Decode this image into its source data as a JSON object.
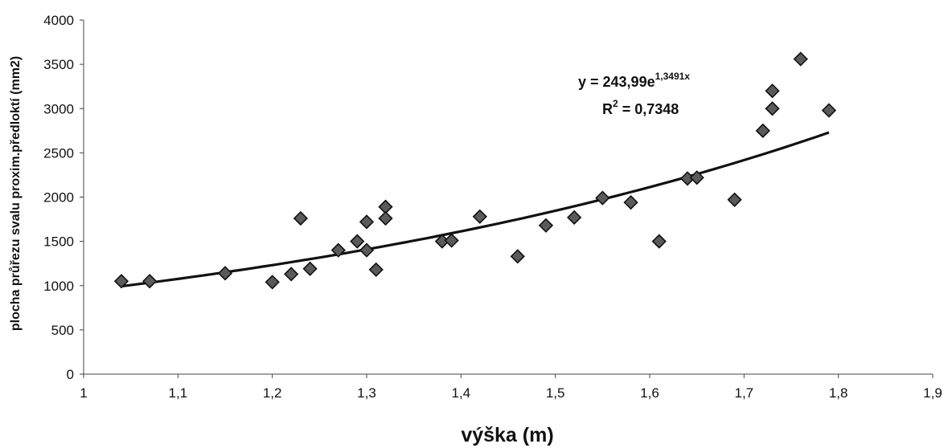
{
  "chart_data": {
    "type": "scatter",
    "xlabel": "výška (m)",
    "ylabel": "plocha průřezu svalu proxim.předloktí (mm2)",
    "xlim": [
      1,
      1.9
    ],
    "ylim": [
      0,
      4000
    ],
    "x_ticks": [
      "1",
      "1,1",
      "1,2",
      "1,3",
      "1,4",
      "1,5",
      "1,6",
      "1,7",
      "1,8",
      "1,9"
    ],
    "y_ticks": [
      "0",
      "500",
      "1000",
      "1500",
      "2000",
      "2500",
      "3000",
      "3500",
      "4000"
    ],
    "grid": false,
    "legend": "none",
    "marker_color": "#5a5a5a",
    "trendline": {
      "type": "exponential",
      "a": 243.99,
      "b": 1.3491,
      "x_range": [
        1.04,
        1.79
      ],
      "equation_prefix": "y = 243,99e",
      "equation_exponent": "1,3491x",
      "r2_prefix": "R",
      "r2_sup": "2",
      "r2_value": " = 0,7348"
    },
    "points": [
      [
        1.04,
        1050
      ],
      [
        1.07,
        1050
      ],
      [
        1.15,
        1140
      ],
      [
        1.2,
        1040
      ],
      [
        1.22,
        1130
      ],
      [
        1.23,
        1760
      ],
      [
        1.24,
        1190
      ],
      [
        1.27,
        1400
      ],
      [
        1.29,
        1500
      ],
      [
        1.3,
        1720
      ],
      [
        1.3,
        1400
      ],
      [
        1.31,
        1180
      ],
      [
        1.32,
        1890
      ],
      [
        1.32,
        1760
      ],
      [
        1.38,
        1500
      ],
      [
        1.39,
        1510
      ],
      [
        1.42,
        1780
      ],
      [
        1.46,
        1330
      ],
      [
        1.49,
        1680
      ],
      [
        1.52,
        1770
      ],
      [
        1.55,
        1990
      ],
      [
        1.58,
        1940
      ],
      [
        1.61,
        1500
      ],
      [
        1.64,
        2210
      ],
      [
        1.65,
        2220
      ],
      [
        1.69,
        1970
      ],
      [
        1.72,
        2750
      ],
      [
        1.73,
        3000
      ],
      [
        1.73,
        3200
      ],
      [
        1.76,
        3560
      ],
      [
        1.79,
        2980
      ]
    ]
  }
}
